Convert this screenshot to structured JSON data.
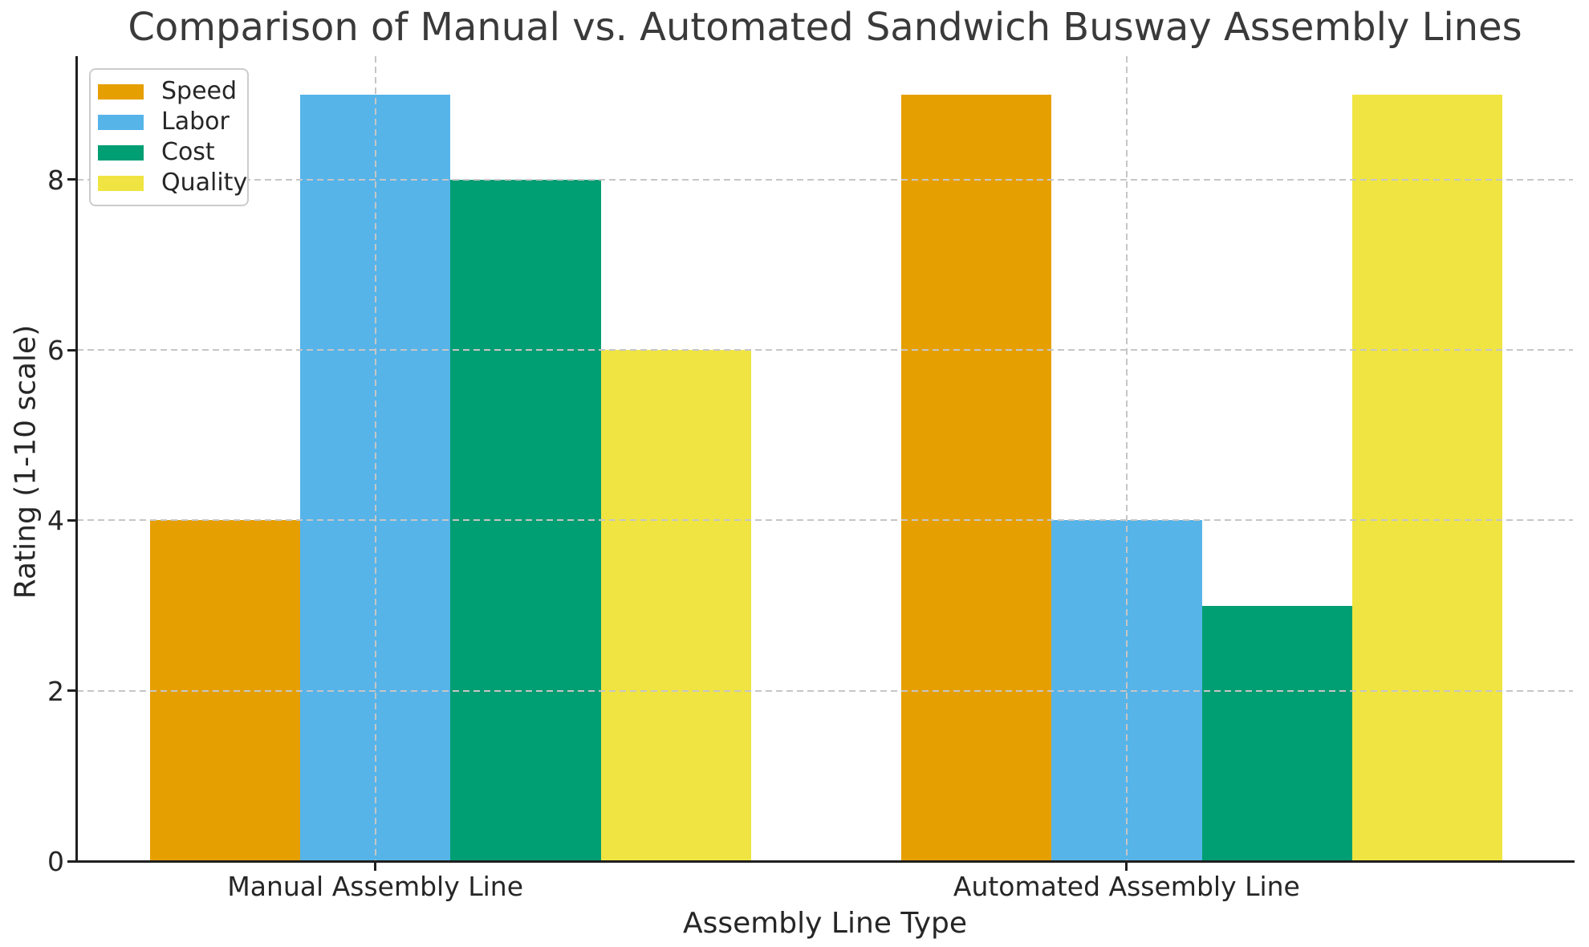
{
  "chart_data": {
    "type": "bar",
    "title": "Comparison of Manual vs. Automated Sandwich Busway Assembly Lines",
    "xlabel": "Assembly Line Type",
    "ylabel": "Rating (1-10 scale)",
    "categories": [
      "Manual Assembly Line",
      "Automated Assembly Line"
    ],
    "series": [
      {
        "name": "Speed",
        "color": "#E69F00",
        "values": [
          4,
          9
        ]
      },
      {
        "name": "Labor",
        "color": "#56B4E9",
        "values": [
          9,
          4
        ]
      },
      {
        "name": "Cost",
        "color": "#009E73",
        "values": [
          8,
          3
        ]
      },
      {
        "name": "Quality",
        "color": "#F0E442",
        "values": [
          6,
          9
        ]
      }
    ],
    "yticks": [
      0,
      2,
      4,
      6,
      8
    ],
    "ylim": [
      0,
      9.45
    ],
    "xlim": [
      -0.397,
      1.594
    ],
    "bar_width": 0.2,
    "grid": true,
    "grid_style": "dashed",
    "legend_position": "upper left",
    "colors": {
      "grid": "#c6c6c6",
      "spine": "#1f1f1f",
      "title_text": "#3a3a3a",
      "text": "#262626",
      "background": "#ffffff"
    }
  }
}
